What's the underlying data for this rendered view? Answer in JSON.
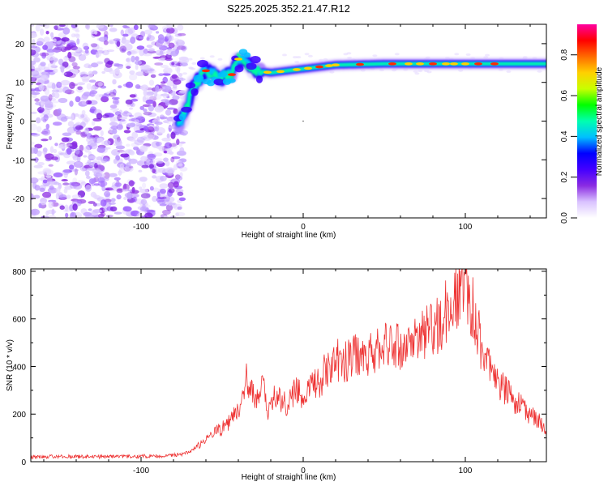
{
  "figure_title": "S225.2025.352.21.47.R12",
  "chart_data": [
    {
      "type": "heatmap",
      "title": "S225.2025.352.21.47.R12",
      "xlabel": "Height of straight line (km)",
      "ylabel": "Frequency (Hz)",
      "xlim": [
        -168,
        150
      ],
      "ylim": [
        -25,
        25
      ],
      "x_ticks": [
        -100,
        0,
        100
      ],
      "y_ticks": [
        -20,
        -10,
        0,
        10,
        20
      ],
      "colorbar": {
        "label": "Normalized spectral amplitude",
        "range": [
          0.0,
          0.95
        ],
        "ticks": [
          0.0,
          0.2,
          0.4,
          0.6,
          0.8
        ],
        "colors": [
          "#ffffff",
          "#d9c2ff",
          "#8a2be2",
          "#4400ff",
          "#0000ff",
          "#00bfff",
          "#00ffb0",
          "#00ff00",
          "#c8ff00",
          "#ffd000",
          "#ff6a00",
          "#ff0000",
          "#ff00a0"
        ]
      },
      "noise_region_x": [
        -168,
        -77
      ],
      "signal_ridge": [
        {
          "x": -77,
          "y": -1
        },
        {
          "x": -72,
          "y": 3
        },
        {
          "x": -68,
          "y": 9
        },
        {
          "x": -60,
          "y": 13
        },
        {
          "x": -52,
          "y": 11
        },
        {
          "x": -44,
          "y": 12
        },
        {
          "x": -40,
          "y": 16
        },
        {
          "x": -35,
          "y": 15
        },
        {
          "x": -28,
          "y": 13
        },
        {
          "x": -20,
          "y": 12.5
        },
        {
          "x": -10,
          "y": 13
        },
        {
          "x": 0,
          "y": 13.5
        },
        {
          "x": 10,
          "y": 14
        },
        {
          "x": 20,
          "y": 14.5
        },
        {
          "x": 50,
          "y": 14.8
        },
        {
          "x": 100,
          "y": 14.8
        },
        {
          "x": 150,
          "y": 14.8
        }
      ]
    },
    {
      "type": "line",
      "xlabel": "Height of straight line (km)",
      "ylabel": "SNR (10 * v/v)",
      "xlim": [
        -168,
        150
      ],
      "ylim": [
        0,
        810
      ],
      "x_ticks": [
        -100,
        0,
        100
      ],
      "y_ticks": [
        0,
        200,
        400,
        600,
        800
      ],
      "color": "#ee3333",
      "series": [
        {
          "name": "SNR",
          "x": [
            -168,
            -150,
            -120,
            -90,
            -75,
            -70,
            -62,
            -55,
            -48,
            -42,
            -38,
            -35,
            -30,
            -28,
            -26,
            -24,
            -22,
            -20,
            -15,
            -10,
            -5,
            0,
            5,
            10,
            15,
            20,
            25,
            30,
            40,
            50,
            60,
            70,
            80,
            85,
            90,
            95,
            98,
            100,
            103,
            106,
            110,
            115,
            120,
            130,
            140,
            150
          ],
          "values": [
            20,
            22,
            20,
            24,
            30,
            45,
            80,
            120,
            150,
            200,
            230,
            340,
            260,
            250,
            300,
            310,
            210,
            280,
            270,
            240,
            300,
            270,
            320,
            340,
            390,
            430,
            410,
            450,
            460,
            480,
            480,
            500,
            560,
            590,
            650,
            700,
            760,
            740,
            690,
            610,
            480,
            380,
            330,
            260,
            200,
            140
          ]
        }
      ]
    }
  ]
}
